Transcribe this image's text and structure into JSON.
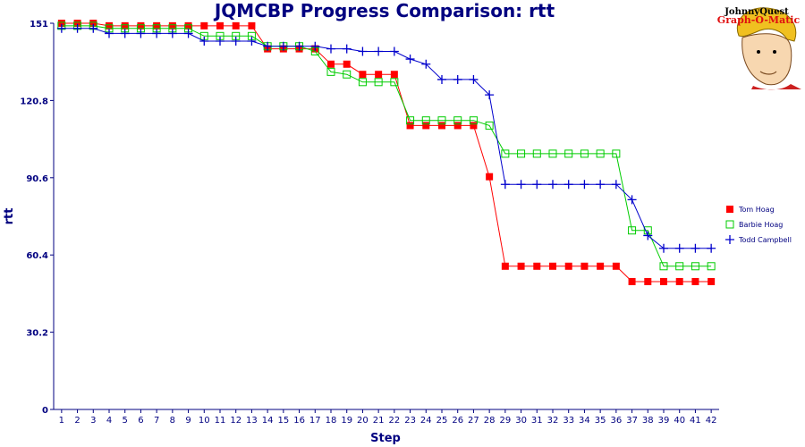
{
  "chart_data": {
    "type": "line",
    "title": "JQMCBP Progress Comparison: rtt",
    "xlabel": "Step",
    "ylabel": "rtt",
    "ylim": [
      0,
      151
    ],
    "yticks": [
      "0",
      "30.2",
      "60.4",
      "90.6",
      "120.8",
      "151"
    ],
    "categories": [
      1,
      2,
      3,
      4,
      5,
      6,
      7,
      8,
      9,
      10,
      11,
      12,
      13,
      14,
      15,
      16,
      17,
      18,
      19,
      20,
      21,
      22,
      23,
      24,
      25,
      26,
      27,
      28,
      29,
      30,
      31,
      32,
      33,
      34,
      35,
      36,
      37,
      38,
      39,
      40,
      41,
      42
    ],
    "legend_position": "right",
    "series": [
      {
        "name": "Tom Hoag",
        "color": "#ff0000",
        "marker": "filled-square",
        "values": [
          151,
          151,
          151,
          150,
          150,
          150,
          150,
          150,
          150,
          150,
          150,
          150,
          150,
          141,
          141,
          141,
          141,
          135,
          135,
          131,
          131,
          131,
          111,
          111,
          111,
          111,
          111,
          91,
          56,
          56,
          56,
          56,
          56,
          56,
          56,
          56,
          50,
          50,
          50,
          50,
          50,
          50
        ]
      },
      {
        "name": "Barbie Hoag",
        "color": "#00cc00",
        "marker": "open-square",
        "values": [
          150,
          150,
          150,
          149,
          149,
          149,
          149,
          149,
          149,
          146,
          146,
          146,
          146,
          142,
          142,
          142,
          140,
          132,
          131,
          128,
          128,
          128,
          113,
          113,
          113,
          113,
          113,
          111,
          100,
          100,
          100,
          100,
          100,
          100,
          100,
          100,
          70,
          70,
          56,
          56,
          56,
          56
        ]
      },
      {
        "name": "Todd Campbell",
        "color": "#0000cc",
        "marker": "plus",
        "values": [
          149,
          149,
          149,
          147,
          147,
          147,
          147,
          147,
          147,
          144,
          144,
          144,
          144,
          142,
          142,
          142,
          142,
          141,
          141,
          140,
          140,
          140,
          137,
          135,
          129,
          129,
          129,
          123,
          88,
          88,
          88,
          88,
          88,
          88,
          88,
          88,
          82,
          68,
          63,
          63,
          63,
          63
        ]
      }
    ]
  },
  "logo": {
    "line1": "JohnnyQuest",
    "line2": "Graph-O-Matic"
  }
}
